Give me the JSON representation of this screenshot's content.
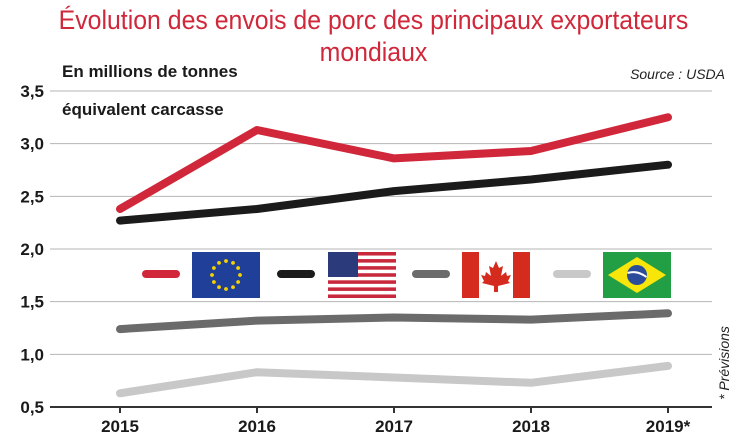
{
  "title": "Évolution  des envois de porc des principaux exportateurs mondiaux",
  "title_lines": [
    "Évolution  des envois de porc des principaux exportateurs",
    "mondiaux"
  ],
  "unit_lines": [
    "En millions de tonnes",
    "équivalent carcasse"
  ],
  "source": "Source : USDA",
  "note": "* Prévisions",
  "colors": {
    "eu": "#d0273a",
    "usa": "#1b1b1b",
    "canada": "#6b6b6b",
    "brazil": "#c8c8c8",
    "title": "#d0273a"
  },
  "chart_data": {
    "type": "line",
    "title": "Évolution  des envois de porc des principaux exportateurs mondiaux",
    "ylabel": "En millions de tonnes équivalent carcasse",
    "xlabel": "",
    "categories": [
      "2015",
      "2016",
      "2017",
      "2018",
      "2019*"
    ],
    "ylim": [
      0.5,
      3.5
    ],
    "yticks": [
      "0,5",
      "1,0",
      "1,5",
      "2,0",
      "2,5",
      "3,0",
      "3,5"
    ],
    "ytick_values": [
      0.5,
      1.0,
      1.5,
      2.0,
      2.5,
      3.0,
      3.5
    ],
    "grid": "horizontal",
    "legend": "center, flag icons",
    "series": [
      {
        "key": "eu",
        "flag": "eu-flag",
        "values": [
          2.38,
          3.13,
          2.86,
          2.93,
          3.25
        ]
      },
      {
        "key": "usa",
        "flag": "usa-flag",
        "values": [
          2.27,
          2.38,
          2.55,
          2.66,
          2.8
        ]
      },
      {
        "key": "canada",
        "flag": "canada-flag",
        "values": [
          1.24,
          1.32,
          1.35,
          1.33,
          1.39
        ]
      },
      {
        "key": "brazil",
        "flag": "brazil-flag",
        "values": [
          0.63,
          0.83,
          0.78,
          0.73,
          0.89
        ]
      }
    ]
  }
}
